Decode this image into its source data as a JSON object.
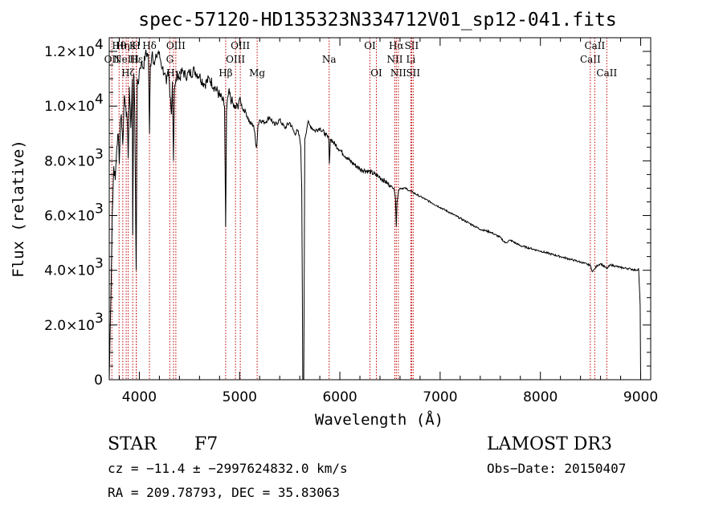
{
  "chart_data": {
    "type": "line",
    "title": "spec-57120-HD135323N334712V01_sp12-041.fits",
    "xlabel": "Wavelength (Å)",
    "ylabel": "Flux (relative)",
    "xlim": [
      3700,
      9100
    ],
    "ylim": [
      0,
      12500
    ],
    "x_ticks": [
      {
        "value": 4000,
        "label": "4000"
      },
      {
        "value": 5000,
        "label": "5000"
      },
      {
        "value": 6000,
        "label": "6000"
      },
      {
        "value": 7000,
        "label": "7000"
      },
      {
        "value": 8000,
        "label": "8000"
      },
      {
        "value": 9000,
        "label": "9000"
      }
    ],
    "y_ticks": [
      {
        "value": 0,
        "mant": "0",
        "exp": ""
      },
      {
        "value": 2000,
        "mant": "2.0×10",
        "exp": "3"
      },
      {
        "value": 4000,
        "mant": "4.0×10",
        "exp": "3"
      },
      {
        "value": 6000,
        "mant": "6.0×10",
        "exp": "3"
      },
      {
        "value": 8000,
        "mant": "8.0×10",
        "exp": "3"
      },
      {
        "value": 10000,
        "mant": "1.0×10",
        "exp": "4"
      },
      {
        "value": 12000,
        "mant": "1.2×10",
        "exp": "4"
      }
    ],
    "series": [
      {
        "name": "spectrum",
        "x": [
          3700,
          3715,
          3730,
          3745,
          3760,
          3775,
          3790,
          3800,
          3810,
          3820,
          3835,
          3850,
          3865,
          3880,
          3889,
          3900,
          3915,
          3930,
          3934,
          3945,
          3955,
          3968,
          3980,
          3990,
          4000,
          4020,
          4040,
          4060,
          4090,
          4101,
          4110,
          4130,
          4150,
          4170,
          4190,
          4210,
          4230,
          4250,
          4270,
          4290,
          4310,
          4320,
          4330,
          4340,
          4350,
          4360,
          4380,
          4400,
          4430,
          4460,
          4500,
          4550,
          4600,
          4650,
          4700,
          4750,
          4800,
          4830,
          4850,
          4861,
          4870,
          4890,
          4920,
          4950,
          4980,
          5000,
          5030,
          5060,
          5100,
          5140,
          5167,
          5175,
          5183,
          5200,
          5250,
          5300,
          5350,
          5400,
          5450,
          5500,
          5550,
          5580,
          5600,
          5610,
          5620,
          5630,
          5640,
          5650,
          5680,
          5700,
          5750,
          5800,
          5850,
          5889,
          5895,
          5905,
          5930,
          6000,
          6100,
          6200,
          6300,
          6400,
          6500,
          6540,
          6555,
          6563,
          6570,
          6585,
          6600,
          6650,
          6700,
          6800,
          6900,
          7000,
          7100,
          7200,
          7300,
          7400,
          7500,
          7600,
          7650,
          7700,
          7800,
          7900,
          8000,
          8100,
          8200,
          8300,
          8400,
          8498,
          8520,
          8542,
          8560,
          8600,
          8662,
          8700,
          8800,
          8900,
          8950,
          8980,
          8995,
          9000
        ],
        "y": [
          0,
          2800,
          6000,
          7800,
          7300,
          8500,
          9000,
          7900,
          9400,
          9700,
          8600,
          10400,
          10000,
          9400,
          8100,
          10700,
          9200,
          11000,
          5300,
          11200,
          9700,
          4000,
          11000,
          10800,
          11300,
          11600,
          11400,
          11900,
          11900,
          9000,
          11500,
          12000,
          11500,
          11800,
          12000,
          11700,
          11400,
          11200,
          10800,
          11300,
          10300,
          9700,
          10900,
          8000,
          10600,
          10800,
          11200,
          11000,
          11300,
          11100,
          11200,
          11300,
          11100,
          10800,
          11000,
          10700,
          10400,
          10200,
          10000,
          5600,
          9800,
          10500,
          10200,
          9900,
          10000,
          10300,
          9900,
          9800,
          9400,
          9300,
          8500,
          8700,
          9300,
          9500,
          9400,
          9600,
          9300,
          9500,
          9200,
          9400,
          9000,
          9100,
          8800,
          8500,
          7000,
          0,
          0,
          8800,
          9400,
          9300,
          9100,
          9200,
          9000,
          8800,
          7900,
          8800,
          8700,
          8400,
          8000,
          7700,
          7600,
          7400,
          7100,
          7000,
          6600,
          5600,
          6500,
          6900,
          7000,
          7000,
          6900,
          6700,
          6500,
          6300,
          6100,
          5900,
          5700,
          5500,
          5400,
          5200,
          5000,
          5100,
          4900,
          4800,
          4700,
          4600,
          4500,
          4400,
          4300,
          4180,
          3950,
          4050,
          4150,
          4250,
          4060,
          4200,
          4100,
          4050,
          4000,
          4050,
          2700,
          0
        ]
      }
    ],
    "line_marks": [
      {
        "x": 3726,
        "row": 1,
        "label": "OII"
      },
      {
        "x": 3798,
        "row": 0,
        "label": "Hθ"
      },
      {
        "x": 3835,
        "row": 0,
        "label": "Hη"
      },
      {
        "x": 3869,
        "row": 1,
        "label": "NeIII"
      },
      {
        "x": 3889,
        "row": 2,
        "label": "Hζ"
      },
      {
        "x": 3934,
        "row": 0,
        "label": "K"
      },
      {
        "x": 3969,
        "row": 0,
        "label": "H"
      },
      {
        "x": 3970,
        "row": 1,
        "label": "Hε"
      },
      {
        "x": 4101,
        "row": 0,
        "label": "Hδ"
      },
      {
        "x": 4304,
        "row": 1,
        "label": "G"
      },
      {
        "x": 4341,
        "row": 2,
        "label": "Hγ"
      },
      {
        "x": 4364,
        "row": 0,
        "label": "OIII"
      },
      {
        "x": 4861,
        "row": 2,
        "label": "Hβ"
      },
      {
        "x": 4959,
        "row": 1,
        "label": "OIII"
      },
      {
        "x": 5007,
        "row": 0,
        "label": "OIII"
      },
      {
        "x": 5175,
        "row": 2,
        "label": "Mg"
      },
      {
        "x": 5893,
        "row": 1,
        "label": "Na"
      },
      {
        "x": 6300,
        "row": 0,
        "label": "OI"
      },
      {
        "x": 6364,
        "row": 2,
        "label": "OI"
      },
      {
        "x": 6548,
        "row": 1,
        "label": "NII"
      },
      {
        "x": 6563,
        "row": 0,
        "label": "Hα"
      },
      {
        "x": 6583,
        "row": 2,
        "label": "NII"
      },
      {
        "x": 6708,
        "row": 1,
        "label": "Li"
      },
      {
        "x": 6716,
        "row": 0,
        "label": "SII"
      },
      {
        "x": 6731,
        "row": 2,
        "label": "SII"
      },
      {
        "x": 8498,
        "row": 1,
        "label": "CaII"
      },
      {
        "x": 8542,
        "row": 0,
        "label": "CaII"
      },
      {
        "x": 8662,
        "row": 2,
        "label": "CaII"
      }
    ]
  },
  "info": {
    "class_label": "STAR",
    "subclass": "F7",
    "survey": "LAMOST DR3",
    "velocity": "cz = −11.4 ± −2997624832.0 km/s",
    "obs_date": "Obs−Date: 20150407",
    "coords": "RA = 209.78793, DEC =  35.83063"
  },
  "colors": {
    "spectrum": "#000000",
    "line_marker": "#c00000",
    "axes": "#000000"
  }
}
